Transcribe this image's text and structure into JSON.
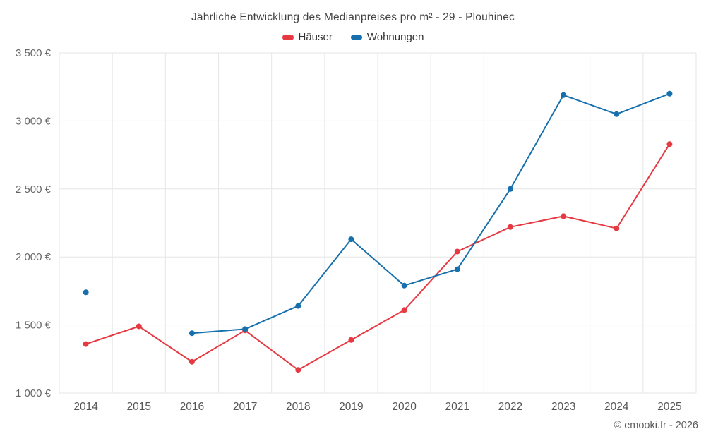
{
  "header": {
    "title": "Jährliche Entwicklung des Medianpreises pro m² - 29 - Plouhinec"
  },
  "legend": [
    {
      "label": "Häuser",
      "color": "#e63941"
    },
    {
      "label": "Wohnungen",
      "color": "#1670ad"
    }
  ],
  "footer": {
    "copyright": "© emooki.fr - 2026"
  },
  "chart_data": {
    "type": "line",
    "title": "Jährliche Entwicklung des Medianpreises pro m² - 29 - Plouhinec",
    "categories": [
      "2014",
      "2015",
      "2016",
      "2017",
      "2018",
      "2019",
      "2020",
      "2021",
      "2022",
      "2023",
      "2024",
      "2025"
    ],
    "series": [
      {
        "name": "Häuser",
        "color": "#e63941",
        "values": [
          1360,
          1490,
          1230,
          1460,
          1170,
          1390,
          1610,
          2040,
          2220,
          2300,
          2210,
          2830
        ]
      },
      {
        "name": "Wohnungen",
        "color": "#1670ad",
        "values": [
          1740,
          null,
          1440,
          1470,
          1640,
          2130,
          1790,
          1910,
          2500,
          3190,
          3050,
          3200
        ]
      }
    ],
    "xlabel": "",
    "ylabel": "",
    "ylim": [
      1000,
      3500
    ],
    "y_tick_step": 500,
    "y_tick_labels": [
      "1 000 €",
      "1 500 €",
      "2 000 €",
      "2 500 €",
      "3 000 €",
      "3 500 €"
    ],
    "grid": true,
    "legend_position": "top",
    "marker": "circle",
    "grid_color": "#e6e6e6",
    "tick_label_color": "#666666"
  }
}
